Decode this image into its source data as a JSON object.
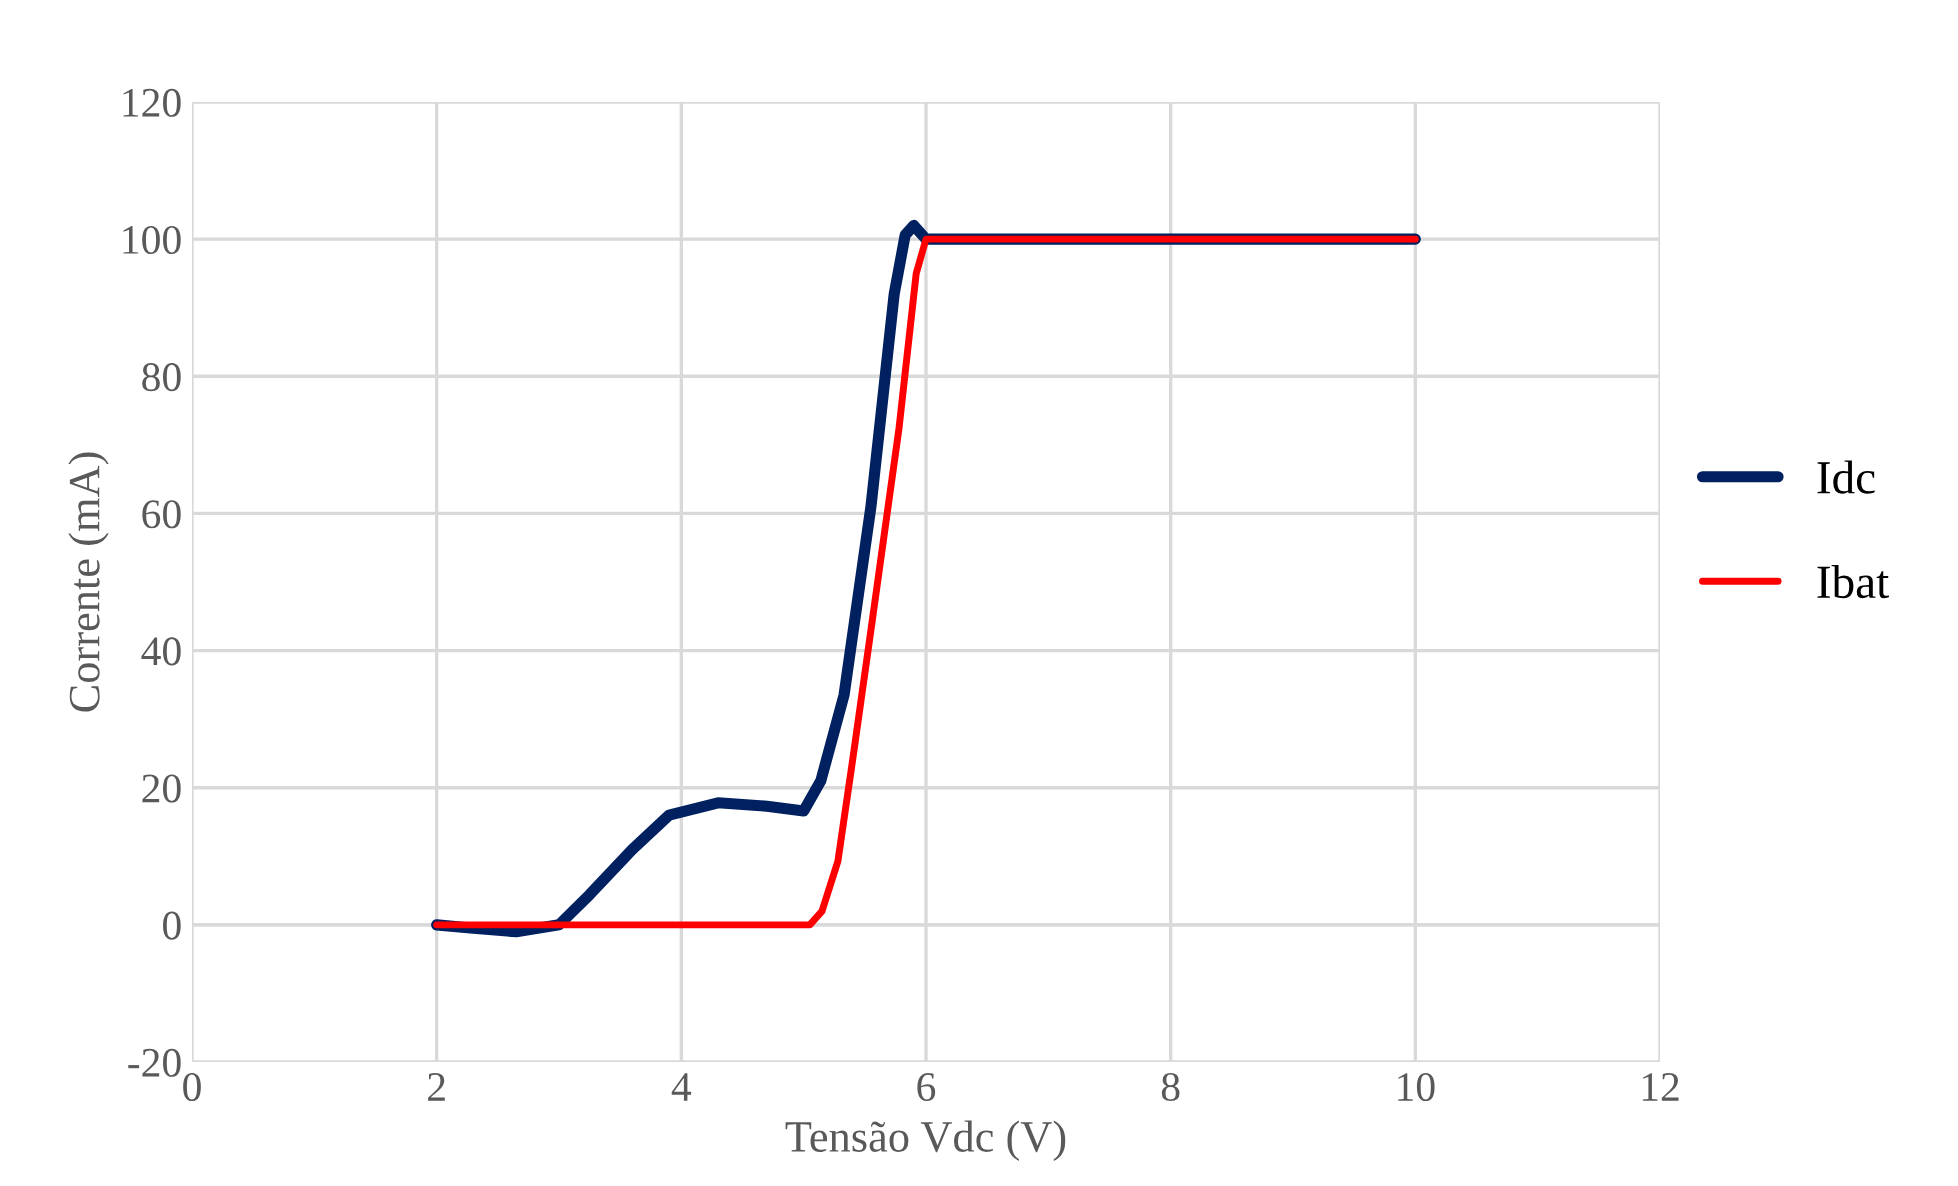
{
  "chart_data": {
    "type": "line",
    "xlabel": "Tensão Vdc (V)",
    "ylabel": "Corrente (mA)",
    "xlim": [
      0,
      12
    ],
    "xticks": [
      0,
      2,
      4,
      6,
      8,
      10,
      12
    ],
    "ylim": [
      -20,
      120
    ],
    "yticks": [
      -20,
      0,
      20,
      40,
      60,
      80,
      100,
      120
    ],
    "grid": true,
    "legend": "right",
    "marker": "none",
    "line_style": "solid",
    "series": [
      {
        "name": "Idc",
        "color": "#002060",
        "x": [
          2,
          2.3,
          2.65,
          3,
          3.25,
          3.6,
          3.9,
          4.3,
          4.7,
          5.0,
          5.14,
          5.33,
          5.55,
          5.74,
          5.83,
          5.9,
          6,
          10
        ],
        "values": [
          0,
          -0.5,
          -1,
          0,
          4.4,
          11,
          16,
          17.8,
          17.3,
          16.6,
          21,
          33.5,
          61,
          92,
          100.6,
          102,
          100,
          100
        ]
      },
      {
        "name": "Ibat",
        "color": "#ff0000",
        "x": [
          2,
          5.05,
          5.15,
          5.28,
          5.4,
          5.55,
          5.78,
          5.92,
          6,
          10
        ],
        "values": [
          0,
          0,
          2,
          9.3,
          24,
          43,
          72.5,
          95,
          100,
          100
        ]
      }
    ]
  }
}
